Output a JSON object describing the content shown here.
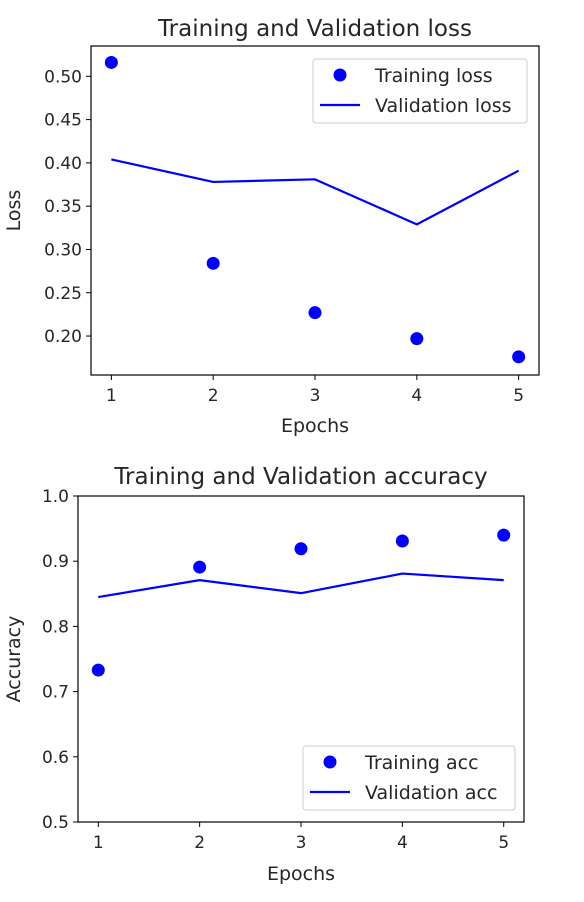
{
  "chart_data": [
    {
      "type": "line",
      "title": "Training and Validation loss",
      "xlabel": "Epochs",
      "ylabel": "Loss",
      "x": [
        1,
        2,
        3,
        4,
        5
      ],
      "xlim": [
        0.8,
        5.2
      ],
      "ylim": [
        0.155,
        0.535
      ],
      "xticks": [
        "1",
        "2",
        "3",
        "4",
        "5"
      ],
      "yticks": [
        "0.20",
        "0.25",
        "0.30",
        "0.35",
        "0.40",
        "0.45",
        "0.50"
      ],
      "grid": false,
      "legend_position": "top-right",
      "series": [
        {
          "name": "Training loss",
          "style": "scatter",
          "color": "#0000ff",
          "values": [
            0.516,
            0.284,
            0.227,
            0.197,
            0.176
          ]
        },
        {
          "name": "Validation loss",
          "style": "line",
          "color": "#0000ff",
          "values": [
            0.404,
            0.378,
            0.381,
            0.329,
            0.391
          ]
        }
      ]
    },
    {
      "type": "line",
      "title": "Training and Validation accuracy",
      "xlabel": "Epochs",
      "ylabel": "Accuracy",
      "x": [
        1,
        2,
        3,
        4,
        5
      ],
      "xlim": [
        0.8,
        5.2
      ],
      "ylim": [
        0.5,
        1.0
      ],
      "xticks": [
        "1",
        "2",
        "3",
        "4",
        "5"
      ],
      "yticks": [
        "0.5",
        "0.6",
        "0.7",
        "0.8",
        "0.9",
        "1.0"
      ],
      "grid": false,
      "legend_position": "bottom-right",
      "series": [
        {
          "name": "Training acc",
          "style": "scatter",
          "color": "#0000ff",
          "values": [
            0.733,
            0.891,
            0.919,
            0.931,
            0.94
          ]
        },
        {
          "name": "Validation acc",
          "style": "line",
          "color": "#0000ff",
          "values": [
            0.845,
            0.871,
            0.851,
            0.881,
            0.871
          ]
        }
      ]
    }
  ]
}
